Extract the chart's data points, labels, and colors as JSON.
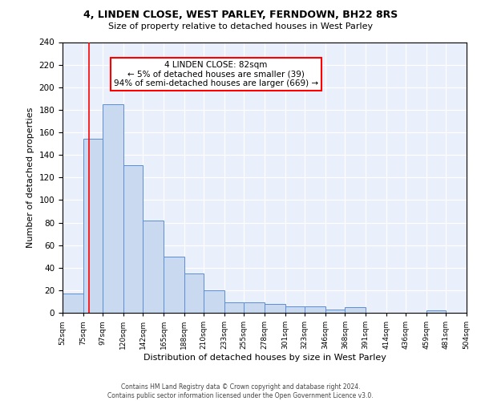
{
  "title1": "4, LINDEN CLOSE, WEST PARLEY, FERNDOWN, BH22 8RS",
  "title2": "Size of property relative to detached houses in West Parley",
  "xlabel": "Distribution of detached houses by size in West Parley",
  "ylabel": "Number of detached properties",
  "bar_color": "#c9d9f0",
  "bar_edge_color": "#5b8dd9",
  "bin_edges": [
    52,
    75,
    97,
    120,
    142,
    165,
    188,
    210,
    233,
    255,
    278,
    301,
    323,
    346,
    368,
    391,
    414,
    436,
    459,
    481,
    504
  ],
  "bar_heights": [
    17,
    154,
    185,
    131,
    82,
    50,
    35,
    20,
    9,
    9,
    8,
    6,
    6,
    3,
    5,
    0,
    0,
    0,
    2,
    0
  ],
  "property_size": 82,
  "red_line_x": 82,
  "annotation_text": "4 LINDEN CLOSE: 82sqm\n← 5% of detached houses are smaller (39)\n94% of semi-detached houses are larger (669) →",
  "annotation_box_color": "white",
  "annotation_box_edge_color": "red",
  "footer1": "Contains HM Land Registry data © Crown copyright and database right 2024.",
  "footer2": "Contains public sector information licensed under the Open Government Licence v3.0.",
  "ylim": [
    0,
    240
  ],
  "tick_labels": [
    "52sqm",
    "75sqm",
    "97sqm",
    "120sqm",
    "142sqm",
    "165sqm",
    "188sqm",
    "210sqm",
    "233sqm",
    "255sqm",
    "278sqm",
    "301sqm",
    "323sqm",
    "346sqm",
    "368sqm",
    "391sqm",
    "414sqm",
    "436sqm",
    "459sqm",
    "481sqm",
    "504sqm"
  ],
  "background_color": "#eaf0fb"
}
